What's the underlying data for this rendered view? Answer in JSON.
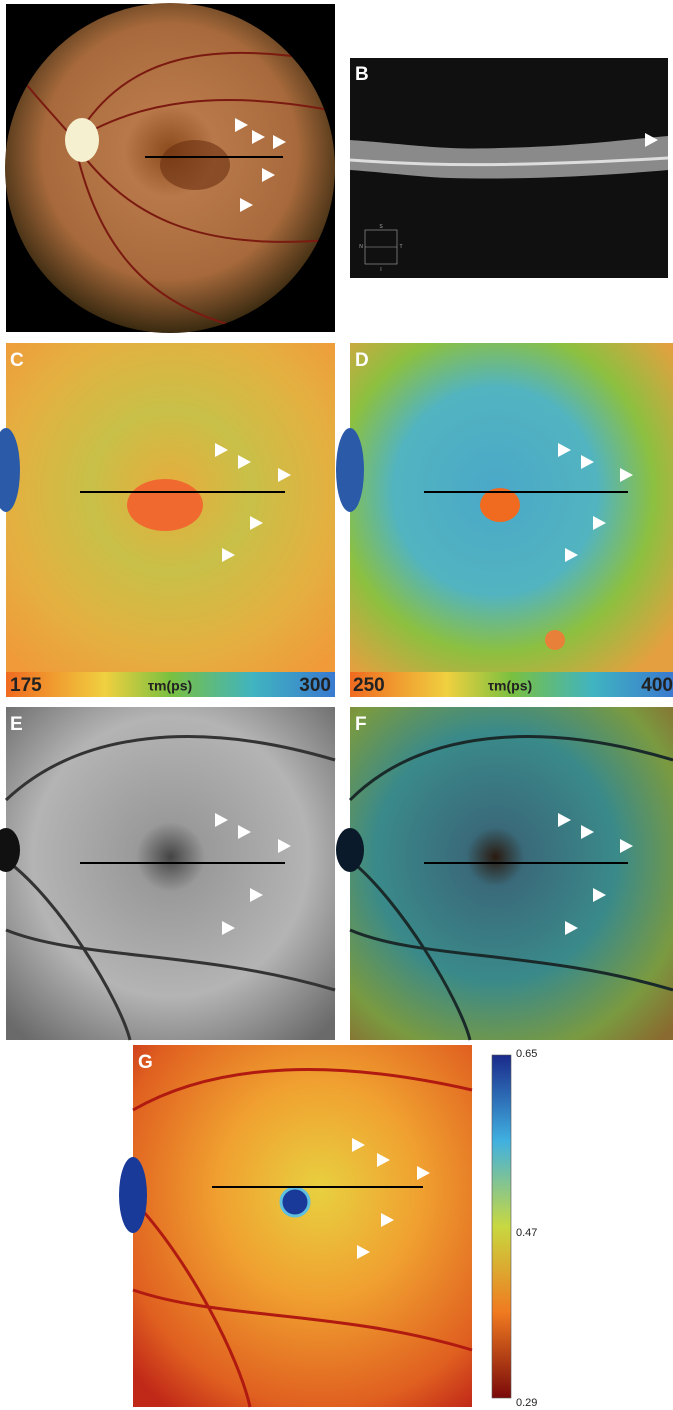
{
  "panels": [
    {
      "label": "B"
    },
    {
      "label": "C"
    },
    {
      "label": "D"
    },
    {
      "label": "E"
    },
    {
      "label": "F"
    },
    {
      "label": "G"
    }
  ],
  "oct_compass": [
    "S",
    "N",
    "T",
    "I"
  ],
  "scale_c": {
    "min": 175,
    "unit": "τm(ps)",
    "max": 300
  },
  "scale_d": {
    "min": 250,
    "unit": "τm(ps)",
    "max": 400
  },
  "colorbar_g": {
    "ticks": [
      0.65,
      0.47,
      0.29
    ]
  }
}
